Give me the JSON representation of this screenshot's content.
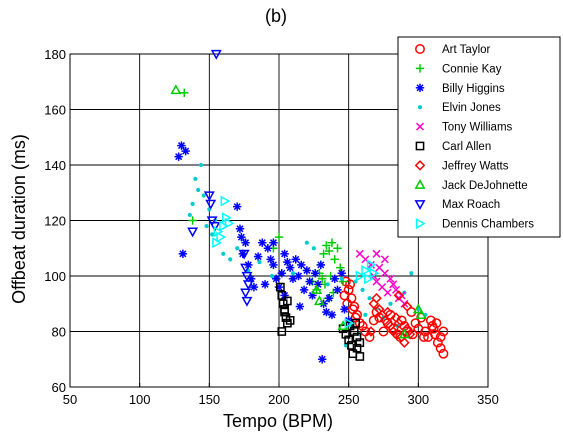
{
  "chart_data": {
    "type": "scatter",
    "title": "(b)",
    "xlabel": "Tempo (BPM)",
    "ylabel": "Offbeat duration (ms)",
    "xlim": [
      50,
      350
    ],
    "ylim": [
      60,
      180
    ],
    "xticks": [
      "50",
      "100",
      "150",
      "200",
      "250",
      "300",
      "350"
    ],
    "yticks": [
      "60",
      "80",
      "100",
      "120",
      "140",
      "160",
      "180"
    ],
    "grid": true,
    "legend_position": "top-right",
    "series": [
      {
        "name": "Art Taylor",
        "color": "#ff0000",
        "marker": "circle",
        "points": [
          [
            248,
            98
          ],
          [
            250,
            95
          ],
          [
            252,
            92
          ],
          [
            249,
            90
          ],
          [
            253,
            88
          ],
          [
            255,
            85
          ],
          [
            251,
            97
          ],
          [
            247,
            93
          ],
          [
            254,
            89
          ],
          [
            256,
            86
          ],
          [
            258,
            83
          ],
          [
            260,
            82
          ],
          [
            262,
            80
          ],
          [
            265,
            78
          ],
          [
            268,
            84
          ],
          [
            270,
            87
          ],
          [
            272,
            85
          ],
          [
            275,
            80
          ],
          [
            278,
            83
          ],
          [
            280,
            86
          ],
          [
            282,
            81
          ],
          [
            285,
            79
          ],
          [
            288,
            84
          ],
          [
            290,
            82
          ],
          [
            292,
            80
          ],
          [
            295,
            87
          ],
          [
            298,
            83
          ],
          [
            300,
            81
          ],
          [
            302,
            85
          ],
          [
            305,
            80
          ],
          [
            307,
            78
          ],
          [
            310,
            82
          ],
          [
            312,
            79
          ],
          [
            314,
            76
          ],
          [
            316,
            74
          ],
          [
            318,
            72
          ],
          [
            316,
            78
          ],
          [
            318,
            80
          ],
          [
            313,
            83
          ],
          [
            309,
            84
          ],
          [
            311,
            81
          ],
          [
            304,
            78
          ],
          [
            296,
            79
          ],
          [
            287,
            78
          ]
        ]
      },
      {
        "name": "Connie Kay",
        "color": "#00cc00",
        "marker": "plus",
        "points": [
          [
            132,
            166
          ],
          [
            138,
            120
          ],
          [
            200,
            114
          ],
          [
            196,
            110
          ],
          [
            230,
            104
          ],
          [
            232,
            108
          ],
          [
            234,
            111
          ],
          [
            236,
            109
          ],
          [
            238,
            112
          ],
          [
            240,
            106
          ],
          [
            242,
            110
          ],
          [
            229,
            101
          ],
          [
            233,
            97
          ],
          [
            237,
            100
          ],
          [
            244,
            103
          ],
          [
            246,
            98
          ],
          [
            239,
            94
          ],
          [
            235,
            92
          ],
          [
            231,
            99
          ],
          [
            227,
            95
          ],
          [
            224,
            98
          ]
        ]
      },
      {
        "name": "Billy Higgins",
        "color": "#0000ff",
        "marker": "asterisk",
        "points": [
          [
            128,
            143
          ],
          [
            130,
            147
          ],
          [
            133,
            145
          ],
          [
            131,
            108
          ],
          [
            170,
            125
          ],
          [
            172,
            117
          ],
          [
            174,
            108
          ],
          [
            176,
            112
          ],
          [
            178,
            104
          ],
          [
            180,
            99
          ],
          [
            182,
            96
          ],
          [
            185,
            107
          ],
          [
            188,
            112
          ],
          [
            190,
            97
          ],
          [
            192,
            110
          ],
          [
            194,
            106
          ],
          [
            196,
            104
          ],
          [
            198,
            99
          ],
          [
            200,
            96
          ],
          [
            202,
            101
          ],
          [
            204,
            108
          ],
          [
            206,
            105
          ],
          [
            208,
            103
          ],
          [
            210,
            99
          ],
          [
            212,
            106
          ],
          [
            214,
            100
          ],
          [
            216,
            104
          ],
          [
            218,
            95
          ],
          [
            220,
            102
          ],
          [
            222,
            98
          ],
          [
            224,
            93
          ],
          [
            226,
            101
          ],
          [
            228,
            97
          ],
          [
            230,
            104
          ],
          [
            232,
            90
          ],
          [
            234,
            87
          ],
          [
            236,
            92
          ],
          [
            238,
            86
          ],
          [
            240,
            99
          ],
          [
            242,
            95
          ],
          [
            245,
            101
          ],
          [
            247,
            88
          ],
          [
            250,
            84
          ],
          [
            231,
            70
          ],
          [
            215,
            89
          ],
          [
            204,
            93
          ],
          [
            196,
            112
          ],
          [
            173,
            114
          ]
        ]
      },
      {
        "name": "Elvin Jones",
        "color": "#00cccc",
        "marker": "dot",
        "points": [
          [
            140,
            135
          ],
          [
            142,
            131
          ],
          [
            144,
            140
          ],
          [
            138,
            126
          ],
          [
            136,
            122
          ],
          [
            146,
            129
          ],
          [
            148,
            118
          ],
          [
            150,
            124
          ],
          [
            152,
            115
          ],
          [
            154,
            120
          ],
          [
            160,
            108
          ],
          [
            165,
            106
          ],
          [
            170,
            110
          ],
          [
            178,
            102
          ],
          [
            186,
            105
          ],
          [
            195,
            100
          ],
          [
            210,
            101
          ],
          [
            220,
            112
          ],
          [
            225,
            110
          ],
          [
            235,
            97
          ],
          [
            245,
            99
          ],
          [
            255,
            98
          ],
          [
            260,
            95
          ],
          [
            265,
            92
          ],
          [
            270,
            88
          ],
          [
            275,
            85
          ],
          [
            280,
            90
          ],
          [
            285,
            82
          ],
          [
            290,
            94
          ],
          [
            295,
            101
          ],
          [
            300,
            88
          ],
          [
            305,
            86
          ],
          [
            248,
            75
          ],
          [
            252,
            82
          ],
          [
            258,
            79
          ],
          [
            262,
            86
          ]
        ]
      },
      {
        "name": "Tony Williams",
        "color": "#ff00cc",
        "marker": "x",
        "points": [
          [
            258,
            108
          ],
          [
            262,
            106
          ],
          [
            266,
            104
          ],
          [
            268,
            100
          ],
          [
            270,
            98
          ],
          [
            272,
            103
          ],
          [
            274,
            96
          ],
          [
            276,
            101
          ],
          [
            278,
            94
          ],
          [
            280,
            99
          ],
          [
            282,
            97
          ],
          [
            284,
            95
          ],
          [
            286,
            92
          ],
          [
            288,
            93
          ],
          [
            290,
            90
          ],
          [
            270,
            108
          ],
          [
            276,
            106
          ]
        ]
      },
      {
        "name": "Carl Allen",
        "color": "#000000",
        "marker": "square",
        "points": [
          [
            201,
            96
          ],
          [
            202,
            93
          ],
          [
            203,
            90
          ],
          [
            204,
            88
          ],
          [
            205,
            85
          ],
          [
            206,
            83
          ],
          [
            202,
            80
          ],
          [
            204,
            87
          ],
          [
            206,
            91
          ],
          [
            208,
            84
          ],
          [
            246,
            81
          ],
          [
            248,
            79
          ],
          [
            250,
            77
          ],
          [
            252,
            75
          ],
          [
            254,
            80
          ],
          [
            256,
            78
          ],
          [
            258,
            76
          ],
          [
            253,
            72
          ],
          [
            256,
            74
          ],
          [
            258,
            71
          ],
          [
            251,
            82
          ],
          [
            255,
            83
          ]
        ]
      },
      {
        "name": "Jeffrey Watts",
        "color": "#ff0000",
        "marker": "diamond",
        "points": [
          [
            268,
            90
          ],
          [
            270,
            92
          ],
          [
            272,
            88
          ],
          [
            274,
            86
          ],
          [
            276,
            84
          ],
          [
            278,
            87
          ],
          [
            280,
            82
          ],
          [
            282,
            80
          ],
          [
            284,
            85
          ],
          [
            286,
            83
          ],
          [
            288,
            78
          ],
          [
            290,
            76
          ],
          [
            292,
            81
          ],
          [
            294,
            79
          ],
          [
            292,
            89
          ],
          [
            286,
            93
          ],
          [
            266,
            80
          ]
        ]
      },
      {
        "name": "Jack DeJohnette",
        "color": "#00cc00",
        "marker": "triangle-up",
        "points": [
          [
            126,
            167
          ],
          [
            227,
            95
          ],
          [
            229,
            91
          ],
          [
            246,
            82
          ],
          [
            300,
            88
          ],
          [
            302,
            86
          ],
          [
            290,
            79
          ]
        ]
      },
      {
        "name": "Max Roach",
        "color": "#0000ff",
        "marker": "triangle-down",
        "points": [
          [
            155,
            180
          ],
          [
            138,
            116
          ],
          [
            150,
            129
          ],
          [
            151,
            126
          ],
          [
            152,
            120
          ],
          [
            154,
            118
          ],
          [
            175,
            108
          ],
          [
            176,
            103
          ],
          [
            177,
            100
          ],
          [
            178,
            97
          ],
          [
            176,
            94
          ],
          [
            177,
            91
          ]
        ]
      },
      {
        "name": "Dennis Chambers",
        "color": "#00ffff",
        "marker": "triangle-right",
        "points": [
          [
            155,
            112
          ],
          [
            156,
            116
          ],
          [
            158,
            114
          ],
          [
            160,
            118
          ],
          [
            162,
            121
          ],
          [
            161,
            127
          ],
          [
            164,
            119
          ],
          [
            262,
            102
          ],
          [
            264,
            99
          ],
          [
            266,
            104
          ],
          [
            268,
            101
          ],
          [
            258,
            100
          ],
          [
            250,
            83
          ]
        ]
      }
    ]
  }
}
